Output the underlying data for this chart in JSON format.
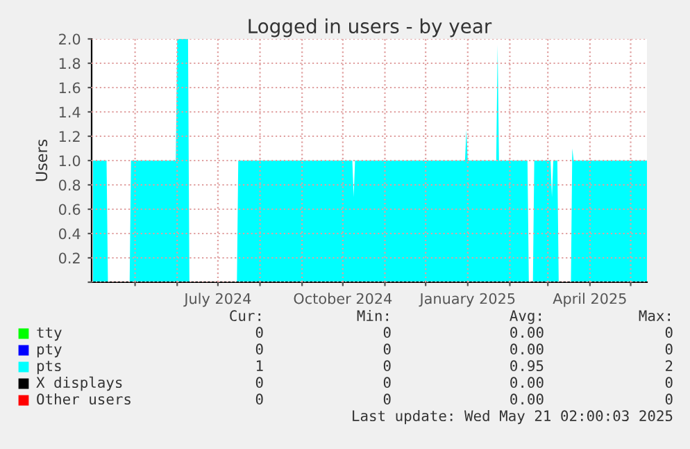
{
  "chart_data": {
    "type": "area",
    "title": "Logged in users - by year",
    "ylabel": "Users",
    "xlim": [
      "2024-03-30",
      "2025-05-13"
    ],
    "xticks": [
      {
        "value": "2024-05-01",
        "label": null
      },
      {
        "value": "2024-06-01",
        "label": null
      },
      {
        "value": "2024-07-01",
        "label": "July 2024"
      },
      {
        "value": "2024-08-01",
        "label": null
      },
      {
        "value": "2024-09-01",
        "label": null
      },
      {
        "value": "2024-10-01",
        "label": "October 2024"
      },
      {
        "value": "2024-11-01",
        "label": null
      },
      {
        "value": "2024-12-01",
        "label": null
      },
      {
        "value": "2025-01-01",
        "label": "January 2025"
      },
      {
        "value": "2025-02-01",
        "label": null
      },
      {
        "value": "2025-03-01",
        "label": null
      },
      {
        "value": "2025-04-01",
        "label": "April 2025"
      },
      {
        "value": "2025-05-01",
        "label": null
      }
    ],
    "ylim": [
      0,
      2.0
    ],
    "yticks": [
      {
        "value": 0,
        "label": null
      },
      {
        "value": 0.2,
        "label": "0.2"
      },
      {
        "value": 0.4,
        "label": "0.4"
      },
      {
        "value": 0.6,
        "label": "0.6"
      },
      {
        "value": 0.8,
        "label": "0.8"
      },
      {
        "value": 1.0,
        "label": "1.0"
      },
      {
        "value": 1.2,
        "label": "1.2"
      },
      {
        "value": 1.4,
        "label": "1.4"
      },
      {
        "value": 1.6,
        "label": "1.6"
      },
      {
        "value": 1.8,
        "label": "1.8"
      },
      {
        "value": 2.0,
        "label": "2.0"
      }
    ],
    "grid": true,
    "legend": "bottom left",
    "series": [
      {
        "name": "tty",
        "color": "#00ff00"
      },
      {
        "name": "pty",
        "color": "#0000ff"
      },
      {
        "name": "pts",
        "color": "#00ffff",
        "x": [
          "2024-03-31",
          "2024-04-10",
          "2024-04-11",
          "2024-04-27",
          "2024-04-28",
          "2024-05-31",
          "2024-06-01",
          "2024-06-09",
          "2024-06-10",
          "2024-07-15",
          "2024-07-16",
          "2024-10-08",
          "2024-10-09",
          "2024-10-10",
          "2024-12-30",
          "2024-12-31",
          "2025-01-01",
          "2025-01-22",
          "2025-01-23",
          "2025-01-24",
          "2025-02-14",
          "2025-02-15",
          "2025-02-18",
          "2025-02-19",
          "2025-03-03",
          "2025-03-04",
          "2025-03-05",
          "2025-03-08",
          "2025-03-09",
          "2025-03-18",
          "2025-03-19",
          "2025-03-20",
          "2025-05-13"
        ],
        "values": [
          1,
          1,
          0,
          0,
          1,
          1,
          2,
          2,
          0,
          0,
          1,
          1,
          0.7,
          1,
          1,
          1.25,
          1,
          1,
          1.95,
          1,
          1,
          0,
          0,
          1,
          1,
          0.7,
          1,
          1,
          0,
          0,
          1.1,
          1,
          1
        ]
      },
      {
        "name": "X displays",
        "color": "#000000"
      },
      {
        "name": "Other users",
        "color": "#ff0000"
      }
    ],
    "annotations": [
      "Cur:",
      "Min:",
      "Avg:",
      "Max:",
      "0",
      "0",
      "0.00",
      "0",
      "0",
      "0",
      "0.00",
      "0",
      "1",
      "0",
      "0.95",
      "2",
      "0",
      "0",
      "0.00",
      "0",
      "0",
      "0",
      "0.00",
      "0",
      "Last update: Wed May 21 02:00:03 2025"
    ]
  }
}
